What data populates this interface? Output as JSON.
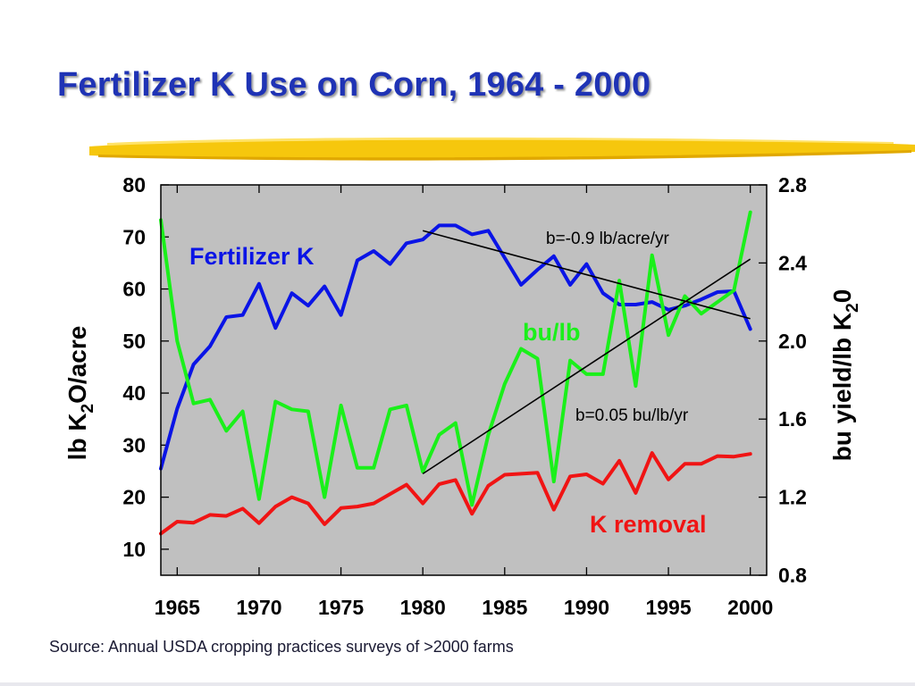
{
  "slide": {
    "title": "Fertilizer K Use on Corn, 1964 - 2000",
    "source": "Source: Annual USDA cropping practices surveys of >2000 farms"
  },
  "colors": {
    "title": "#1f33b5",
    "plot_background": "#c0c0c0",
    "fertilizer_k": "#0a14e6",
    "bu_per_lb": "#1af01a",
    "k_removal": "#f01414",
    "trend": "#000000",
    "accent_brush": "#f5c400"
  },
  "chart_data": {
    "type": "line",
    "title": "Fertilizer K Use on Corn, 1964 - 2000",
    "xlabel": "",
    "ylabel_left": {
      "prefix": "lb K",
      "sub": "2",
      "suffix": "O/acre"
    },
    "ylabel_right": {
      "prefix": "bu yield/lb K",
      "sub": "2",
      "suffix": "0"
    },
    "xlim": [
      1964,
      2001
    ],
    "ylim_left": [
      5,
      80
    ],
    "ylim_right": [
      0.8,
      2.8
    ],
    "x_ticks": [
      1965,
      1970,
      1975,
      1980,
      1985,
      1990,
      1995,
      2000
    ],
    "y_ticks_left": [
      10,
      20,
      30,
      40,
      50,
      60,
      70,
      80
    ],
    "y_ticks_right": [
      "0.8",
      "1.2",
      "1.6",
      "2.0",
      "2.4",
      "2.8"
    ],
    "grid": false,
    "x": [
      1964,
      1965,
      1966,
      1967,
      1968,
      1969,
      1970,
      1971,
      1972,
      1973,
      1974,
      1975,
      1976,
      1977,
      1978,
      1979,
      1980,
      1981,
      1982,
      1983,
      1984,
      1985,
      1986,
      1987,
      1988,
      1989,
      1990,
      1991,
      1992,
      1993,
      1994,
      1995,
      1996,
      1997,
      1998,
      1999,
      2000
    ],
    "series": [
      {
        "name": "Fertilizer K",
        "axis": "left",
        "color": "#0a14e6",
        "values": [
          25.5,
          37,
          45.5,
          49,
          54.6,
          55,
          61,
          52.5,
          59.2,
          56.8,
          60.5,
          55,
          65.5,
          67.3,
          64.8,
          68.8,
          69.5,
          72.2,
          72.2,
          70.5,
          71.2,
          66,
          60.8,
          63.7,
          66.3,
          60.8,
          64.8,
          59.2,
          57,
          57,
          57.5,
          56,
          56.8,
          58,
          59.4,
          59.6,
          52.3
        ]
      },
      {
        "name": "bu/lb",
        "axis": "right",
        "color": "#1af01a",
        "values": [
          2.62,
          2.0,
          1.68,
          1.7,
          1.54,
          1.64,
          1.19,
          1.69,
          1.65,
          1.64,
          1.2,
          1.67,
          1.35,
          1.35,
          1.65,
          1.67,
          1.33,
          1.52,
          1.58,
          1.16,
          1.52,
          1.78,
          1.96,
          1.91,
          1.28,
          1.9,
          1.83,
          1.83,
          2.31,
          1.77,
          2.44,
          2.03,
          2.23,
          2.14,
          2.2,
          2.26,
          2.66
        ]
      },
      {
        "name": "K removal",
        "axis": "left",
        "color": "#f01414",
        "values": [
          13,
          15.3,
          15.1,
          16.6,
          16.4,
          17.8,
          15,
          18.2,
          20,
          18.8,
          14.8,
          17.9,
          18.2,
          18.8,
          20.6,
          22.4,
          18.8,
          22.5,
          23.3,
          16.8,
          22.2,
          24.3,
          24.5,
          24.7,
          17.6,
          24,
          24.4,
          22.6,
          27,
          20.8,
          28.5,
          23.4,
          26.4,
          26.4,
          27.9,
          27.8,
          28.3
        ]
      }
    ],
    "trend_lines": [
      {
        "axis": "left",
        "x": [
          1980,
          2000
        ],
        "y": [
          71.2,
          54.3
        ],
        "label": "b=-0.9 lb/acre/yr"
      },
      {
        "axis": "right",
        "x": [
          1980,
          2000
        ],
        "y": [
          1.32,
          2.42
        ],
        "label": "b=0.05 bu/lb/yr"
      }
    ],
    "annotations": [
      {
        "text": "Fertilizer K",
        "color": "#0a14e6"
      },
      {
        "text": "bu/lb",
        "color": "#1af01a"
      },
      {
        "text": "K removal",
        "color": "#f01414"
      },
      {
        "text": "b=-0.9 lb/acre/yr",
        "color": "#000000"
      },
      {
        "text": "b=0.05 bu/lb/yr",
        "color": "#000000"
      }
    ]
  }
}
